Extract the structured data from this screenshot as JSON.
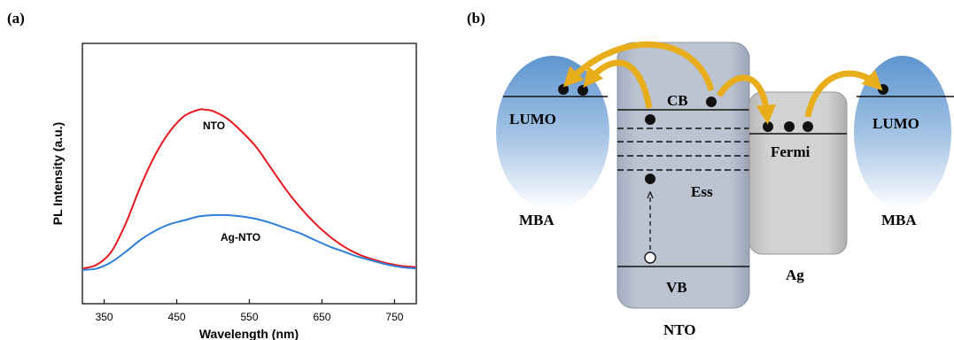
{
  "panel_a": {
    "label": "(a)",
    "chart_data": {
      "type": "line",
      "xlabel": "Wavelength (nm)",
      "ylabel": "PL Intensity (a.u.)",
      "xlim": [
        320,
        780
      ],
      "ylim": [
        0,
        1
      ],
      "xticks": [
        350,
        450,
        550,
        650,
        750
      ],
      "grid": false,
      "series": [
        {
          "name": "NTO",
          "color": "#e8191e",
          "x": [
            320,
            340,
            360,
            380,
            400,
            420,
            440,
            460,
            480,
            490,
            500,
            520,
            540,
            560,
            580,
            600,
            620,
            640,
            660,
            680,
            700,
            720,
            740,
            760,
            780
          ],
          "y": [
            0.135,
            0.15,
            0.2,
            0.31,
            0.45,
            0.57,
            0.66,
            0.72,
            0.745,
            0.745,
            0.74,
            0.71,
            0.66,
            0.6,
            0.52,
            0.44,
            0.37,
            0.31,
            0.26,
            0.22,
            0.19,
            0.17,
            0.155,
            0.145,
            0.14
          ]
        },
        {
          "name": "Ag-NTO",
          "color": "#2f7fd9",
          "x": [
            320,
            340,
            360,
            380,
            400,
            420,
            440,
            460,
            480,
            500,
            520,
            540,
            560,
            580,
            600,
            620,
            640,
            660,
            680,
            700,
            720,
            740,
            760,
            780
          ],
          "y": [
            0.13,
            0.135,
            0.16,
            0.2,
            0.245,
            0.28,
            0.305,
            0.32,
            0.335,
            0.34,
            0.34,
            0.335,
            0.325,
            0.31,
            0.29,
            0.27,
            0.245,
            0.22,
            0.2,
            0.18,
            0.165,
            0.15,
            0.14,
            0.135
          ]
        }
      ]
    }
  },
  "panel_b": {
    "label": "(b)",
    "left_mba": {
      "level": "LUMO",
      "name": "MBA"
    },
    "right_mba": {
      "level": "LUMO",
      "name": "MBA"
    },
    "nto": {
      "name": "NTO",
      "cb": "CB",
      "vb": "VB",
      "ess": "Ess"
    },
    "ag": {
      "name": "Ag",
      "fermi": "Fermi"
    },
    "colors": {
      "arrow": "#e8ad1a",
      "box": "#b3bccb",
      "ag_box": "#c7c7c7",
      "ellipse": "#5d95cf"
    }
  }
}
